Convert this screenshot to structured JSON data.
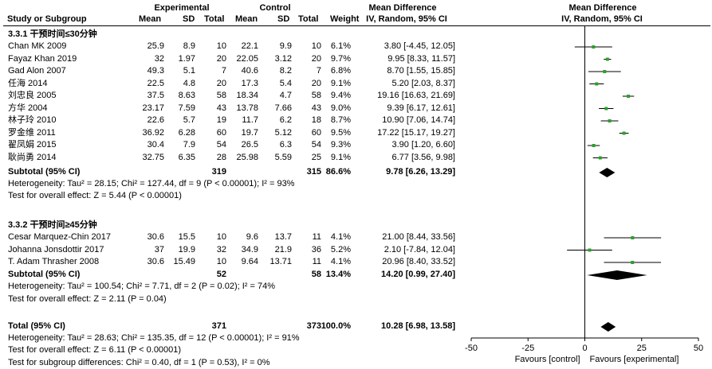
{
  "header": {
    "experimental": "Experimental",
    "control": "Control",
    "mean_difference": "Mean Difference",
    "mean_difference_plot": "Mean Difference",
    "study": "Study or Subgroup",
    "mean": "Mean",
    "sd": "SD",
    "total": "Total",
    "weight": "Weight",
    "method": "IV, Random, 95% CI",
    "method_plot": "IV, Random, 95% CI"
  },
  "groups": [
    {
      "title": "3.3.1 干预时间≤30分钟",
      "studies": [
        {
          "name": "Chan MK  2009",
          "e_mean": "25.9",
          "e_sd": "8.9",
          "e_total": "10",
          "c_mean": "22.1",
          "c_sd": "9.9",
          "c_total": "10",
          "weight": "6.1%",
          "ci": "3.80 [-4.45, 12.05]",
          "md": 3.8,
          "lo": -4.45,
          "hi": 12.05
        },
        {
          "name": "Fayaz Khan  2019",
          "e_mean": "32",
          "e_sd": "1.97",
          "e_total": "20",
          "c_mean": "22.05",
          "c_sd": "3.12",
          "c_total": "20",
          "weight": "9.7%",
          "ci": "9.95 [8.33, 11.57]",
          "md": 9.95,
          "lo": 8.33,
          "hi": 11.57
        },
        {
          "name": "Gad Alon 2007",
          "e_mean": "49.3",
          "e_sd": "5.1",
          "e_total": "7",
          "c_mean": "40.6",
          "c_sd": "8.2",
          "c_total": "7",
          "weight": "6.8%",
          "ci": "8.70 [1.55, 15.85]",
          "md": 8.7,
          "lo": 1.55,
          "hi": 15.85
        },
        {
          "name": "任海 2014",
          "e_mean": "22.5",
          "e_sd": "4.8",
          "e_total": "20",
          "c_mean": "17.3",
          "c_sd": "5.4",
          "c_total": "20",
          "weight": "9.1%",
          "ci": "5.20 [2.03, 8.37]",
          "md": 5.2,
          "lo": 2.03,
          "hi": 8.37
        },
        {
          "name": "刘忠良 2005",
          "e_mean": "37.5",
          "e_sd": "8.63",
          "e_total": "58",
          "c_mean": "18.34",
          "c_sd": "4.7",
          "c_total": "58",
          "weight": "9.4%",
          "ci": "19.16 [16.63, 21.69]",
          "md": 19.16,
          "lo": 16.63,
          "hi": 21.69
        },
        {
          "name": "方华 2004",
          "e_mean": "23.17",
          "e_sd": "7.59",
          "e_total": "43",
          "c_mean": "13.78",
          "c_sd": "7.66",
          "c_total": "43",
          "weight": "9.0%",
          "ci": "9.39 [6.17, 12.61]",
          "md": 9.39,
          "lo": 6.17,
          "hi": 12.61
        },
        {
          "name": "林子玲 2010",
          "e_mean": "22.6",
          "e_sd": "5.7",
          "e_total": "19",
          "c_mean": "11.7",
          "c_sd": "6.2",
          "c_total": "18",
          "weight": "8.7%",
          "ci": "10.90 [7.06, 14.74]",
          "md": 10.9,
          "lo": 7.06,
          "hi": 14.74
        },
        {
          "name": "罗金维 2011",
          "e_mean": "36.92",
          "e_sd": "6.28",
          "e_total": "60",
          "c_mean": "19.7",
          "c_sd": "5.12",
          "c_total": "60",
          "weight": "9.5%",
          "ci": "17.22 [15.17, 19.27]",
          "md": 17.22,
          "lo": 15.17,
          "hi": 19.27
        },
        {
          "name": "翟凤娟 2015",
          "e_mean": "30.4",
          "e_sd": "7.9",
          "e_total": "54",
          "c_mean": "26.5",
          "c_sd": "6.3",
          "c_total": "54",
          "weight": "9.3%",
          "ci": "3.90 [1.20, 6.60]",
          "md": 3.9,
          "lo": 1.2,
          "hi": 6.6
        },
        {
          "name": "耿尚勇 2014",
          "e_mean": "32.75",
          "e_sd": "6.35",
          "e_total": "28",
          "c_mean": "25.98",
          "c_sd": "5.59",
          "c_total": "25",
          "weight": "9.1%",
          "ci": "6.77 [3.56, 9.98]",
          "md": 6.77,
          "lo": 3.56,
          "hi": 9.98
        }
      ],
      "subtotal": {
        "label": "Subtotal (95% CI)",
        "e_total": "319",
        "c_total": "315",
        "weight": "86.6%",
        "ci": "9.78 [6.26, 13.29]",
        "md": 9.78,
        "lo": 6.26,
        "hi": 13.29
      },
      "heterogeneity": "Heterogeneity: Tau² = 28.15; Chi² = 127.44, df = 9 (P < 0.00001); I² = 93%",
      "overall": "Test for overall effect: Z = 5.44 (P < 0.00001)"
    },
    {
      "title": "3.3.2 干预时间≥45分钟",
      "studies": [
        {
          "name": "Cesar Marquez-Chin 2017",
          "e_mean": "30.6",
          "e_sd": "15.5",
          "e_total": "10",
          "c_mean": "9.6",
          "c_sd": "13.7",
          "c_total": "11",
          "weight": "4.1%",
          "ci": "21.00 [8.44, 33.56]",
          "md": 21.0,
          "lo": 8.44,
          "hi": 33.56
        },
        {
          "name": "Johanna Jonsdottir  2017",
          "e_mean": "37",
          "e_sd": "19.9",
          "e_total": "32",
          "c_mean": "34.9",
          "c_sd": "21.9",
          "c_total": "36",
          "weight": "5.2%",
          "ci": "2.10 [-7.84, 12.04]",
          "md": 2.1,
          "lo": -7.84,
          "hi": 12.04
        },
        {
          "name": "T. Adam Thrasher 2008",
          "e_mean": "30.6",
          "e_sd": "15.49",
          "e_total": "10",
          "c_mean": "9.64",
          "c_sd": "13.71",
          "c_total": "11",
          "weight": "4.1%",
          "ci": "20.96 [8.40, 33.52]",
          "md": 20.96,
          "lo": 8.4,
          "hi": 33.52
        }
      ],
      "subtotal": {
        "label": "Subtotal (95% CI)",
        "e_total": "52",
        "c_total": "58",
        "weight": "13.4%",
        "ci": "14.20 [0.99, 27.40]",
        "md": 14.2,
        "lo": 0.99,
        "hi": 27.4
      },
      "heterogeneity": "Heterogeneity: Tau² = 100.54; Chi² = 7.71, df = 2 (P = 0.02); I² = 74%",
      "overall": "Test for overall effect: Z = 2.11 (P = 0.04)"
    }
  ],
  "total": {
    "label": "Total (95% CI)",
    "e_total": "371",
    "c_total": "373",
    "weight": "100.0%",
    "ci": "10.28 [6.98, 13.58]",
    "md": 10.28,
    "lo": 6.98,
    "hi": 13.58
  },
  "footer": {
    "heterogeneity": "Heterogeneity: Tau² = 28.63; Chi² = 135.35, df = 12 (P < 0.00001); I² = 91%",
    "overall": "Test for overall effect: Z = 6.11 (P < 0.00001)",
    "subgroup": "Test for subgroup differences: Chi² = 0.40, df = 1 (P = 0.53), I² = 0%"
  },
  "axis": {
    "ticks": [
      "-50",
      "-25",
      "0",
      "25",
      "50"
    ],
    "favours_left": "Favours [control]",
    "favours_right": "Favours [experimental]"
  },
  "colors": {
    "marker": "#2ca02c",
    "text": "#000000"
  },
  "chart_data": {
    "type": "forest",
    "xlim": [
      -50,
      50
    ],
    "xticks": [
      -50,
      -25,
      0,
      25,
      50
    ],
    "reference_line": 0,
    "studies": [
      {
        "name": "Chan MK  2009",
        "md": 3.8,
        "lo": -4.45,
        "hi": 12.05
      },
      {
        "name": "Fayaz Khan  2019",
        "md": 9.95,
        "lo": 8.33,
        "hi": 11.57
      },
      {
        "name": "Gad Alon 2007",
        "md": 8.7,
        "lo": 1.55,
        "hi": 15.85
      },
      {
        "name": "任海 2014",
        "md": 5.2,
        "lo": 2.03,
        "hi": 8.37
      },
      {
        "name": "刘忠良 2005",
        "md": 19.16,
        "lo": 16.63,
        "hi": 21.69
      },
      {
        "name": "方华 2004",
        "md": 9.39,
        "lo": 6.17,
        "hi": 12.61
      },
      {
        "name": "林子玲 2010",
        "md": 10.9,
        "lo": 7.06,
        "hi": 14.74
      },
      {
        "name": "罗金维 2011",
        "md": 17.22,
        "lo": 15.17,
        "hi": 19.27
      },
      {
        "name": "翟凤娟 2015",
        "md": 3.9,
        "lo": 1.2,
        "hi": 6.6
      },
      {
        "name": "耿尚勇 2014",
        "md": 6.77,
        "lo": 3.56,
        "hi": 9.98
      },
      {
        "name": "Cesar Marquez-Chin 2017",
        "md": 21.0,
        "lo": 8.44,
        "hi": 33.56
      },
      {
        "name": "Johanna Jonsdottir  2017",
        "md": 2.1,
        "lo": -7.84,
        "hi": 12.04
      },
      {
        "name": "T. Adam Thrasher 2008",
        "md": 20.96,
        "lo": 8.4,
        "hi": 33.52
      }
    ],
    "pooled": [
      {
        "name": "Subtotal 3.3.1",
        "md": 9.78,
        "lo": 6.26,
        "hi": 13.29
      },
      {
        "name": "Subtotal 3.3.2",
        "md": 14.2,
        "lo": 0.99,
        "hi": 27.4
      },
      {
        "name": "Total",
        "md": 10.28,
        "lo": 6.98,
        "hi": 13.58
      }
    ]
  }
}
